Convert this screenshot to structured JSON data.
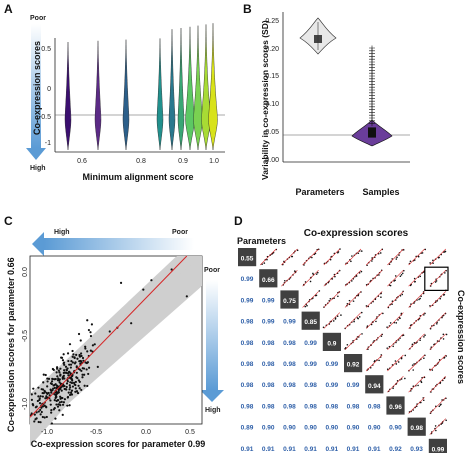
{
  "panels": {
    "A": {
      "letter": "A",
      "poor_label": "Poor",
      "high_label": "High",
      "ylabel": "Co-expression scores",
      "xlabel": "Minimum alignment score",
      "yticks": [
        "0.5",
        "0",
        "-0.5",
        "-1"
      ],
      "xticks": [
        "0.6",
        "0.8",
        "0.9",
        "1.0"
      ]
    },
    "B": {
      "letter": "B",
      "ylabel": "Variability in co-expression scores (SD)",
      "yticks": [
        "0.25",
        "0.20",
        "0.15",
        "0.10",
        "0.05",
        "0.00"
      ],
      "xticks": [
        "Parameters",
        "Samples"
      ]
    },
    "C": {
      "letter": "C",
      "high_label": "High",
      "poor_label_top": "Poor",
      "poor_label_right": "Poor",
      "high_label_right": "High",
      "ylabel": "Co-expression scores for parameter 0.66",
      "xlabel": "Co-expression scores for parameter 0.99",
      "xticks": [
        "-1.0",
        "-0.5",
        "0.0",
        "0.5"
      ],
      "yticks": [
        "0.0",
        "-0.5",
        "-1.0"
      ]
    },
    "D": {
      "letter": "D",
      "title": "Co-expression scores",
      "row_label": "Parameters",
      "side_label": "Co-expression scores",
      "diagonal": [
        "0.55",
        "0.66",
        "0.75",
        "0.85",
        "0.9",
        "0.92",
        "0.94",
        "0.96",
        "0.98",
        "0.99"
      ],
      "lower": [
        [
          "0.99"
        ],
        [
          "0.99",
          "0.99"
        ],
        [
          "0.98",
          "0.99",
          "0.99"
        ],
        [
          "0.98",
          "0.98",
          "0.98",
          "0.99"
        ],
        [
          "0.98",
          "0.98",
          "0.98",
          "0.99",
          "0.99"
        ],
        [
          "0.98",
          "0.98",
          "0.98",
          "0.98",
          "0.99",
          "0.99"
        ],
        [
          "0.98",
          "0.98",
          "0.98",
          "0.98",
          "0.98",
          "0.98",
          "0.98"
        ],
        [
          "0.89",
          "0.90",
          "0.90",
          "0.90",
          "0.90",
          "0.90",
          "0.90",
          "0.90"
        ],
        [
          "0.91",
          "0.91",
          "0.91",
          "0.91",
          "0.91",
          "0.91",
          "0.91",
          "0.92",
          "0.93"
        ]
      ]
    }
  },
  "colors": {
    "arrow_blue": "#5b9bd5",
    "diag_box": "#404040",
    "corr_text": "#2e5fa8",
    "regression": "#d62728",
    "band": "#cfcfcf"
  },
  "chart_data": [
    {
      "type": "violin",
      "xlabel": "Minimum alignment score",
      "ylabel": "Co-expression scores",
      "ylim": [
        -1,
        0.6
      ],
      "categories": [
        "0.55",
        "0.66",
        "0.75",
        "0.85",
        "0.9",
        "0.92",
        "0.94",
        "0.96",
        "0.98",
        "0.99"
      ],
      "medians": [
        -0.55,
        -0.55,
        -0.55,
        -0.55,
        -0.55,
        -0.55,
        -0.55,
        -0.55,
        -0.55,
        -0.55
      ]
    },
    {
      "type": "box",
      "ylabel": "Variability in co-expression scores (SD)",
      "categories": [
        "Parameters",
        "Samples"
      ],
      "ylim": [
        0,
        0.28
      ],
      "medians": [
        0.233,
        0.05
      ]
    },
    {
      "type": "scatter",
      "xlabel": "Co-expression scores for parameter 0.99",
      "ylabel": "Co-expression scores for parameter 0.66",
      "xlim": [
        -1.1,
        0.6
      ],
      "ylim": [
        -1.1,
        0.15
      ]
    }
  ]
}
